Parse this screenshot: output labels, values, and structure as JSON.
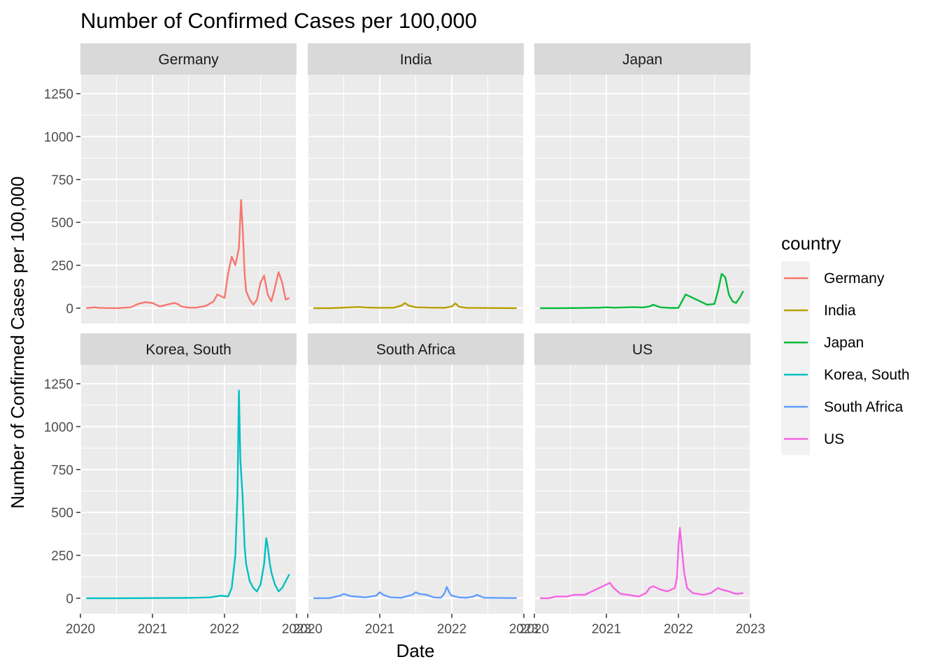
{
  "chart_data": {
    "type": "line",
    "title": "Number of Confirmed Cases per 100,000",
    "xlabel": "Date",
    "ylabel": "Number of Confirmed Cases per 100,000",
    "xlim": [
      2020.0,
      2023.0
    ],
    "ylim": [
      0,
      1250
    ],
    "x_ticks": [
      "2020",
      "2021",
      "2022",
      "2023"
    ],
    "x_tick_values": [
      2020,
      2021,
      2022,
      2023
    ],
    "y_ticks": [
      "0",
      "250",
      "500",
      "750",
      "1000",
      "1250"
    ],
    "y_tick_values": [
      0,
      250,
      500,
      750,
      1000,
      1250
    ],
    "grid": true,
    "facets": "3 columns x 2 rows",
    "legend": {
      "title": "country",
      "placement": "right",
      "entries": [
        "Germany",
        "India",
        "Japan",
        "Korea, South",
        "South Africa",
        "US"
      ]
    },
    "series": [
      {
        "name": "Germany",
        "color": "#F8766D",
        "x": [
          2020.08,
          2020.2,
          2020.25,
          2020.35,
          2020.5,
          2020.7,
          2020.8,
          2020.9,
          2021.0,
          2021.1,
          2021.15,
          2021.3,
          2021.35,
          2021.4,
          2021.5,
          2021.6,
          2021.7,
          2021.75,
          2021.85,
          2021.9,
          2022.0,
          2022.05,
          2022.1,
          2022.15,
          2022.2,
          2022.23,
          2022.25,
          2022.28,
          2022.3,
          2022.35,
          2022.4,
          2022.45,
          2022.5,
          2022.55,
          2022.6,
          2022.65,
          2022.7,
          2022.75,
          2022.8,
          2022.85,
          2022.9
        ],
        "y": [
          0,
          5,
          2,
          1,
          0,
          5,
          25,
          35,
          30,
          10,
          15,
          30,
          25,
          10,
          3,
          3,
          10,
          15,
          40,
          80,
          60,
          200,
          300,
          250,
          350,
          630,
          480,
          200,
          100,
          50,
          20,
          50,
          150,
          190,
          80,
          40,
          120,
          210,
          150,
          50,
          60
        ]
      },
      {
        "name": "India",
        "color": "#B79F00",
        "x": [
          2020.08,
          2020.3,
          2020.5,
          2020.7,
          2020.8,
          2021.0,
          2021.2,
          2021.3,
          2021.35,
          2021.4,
          2021.5,
          2021.7,
          2021.9,
          2022.0,
          2022.05,
          2022.1,
          2022.2,
          2022.5,
          2022.9
        ],
        "y": [
          0,
          0,
          3,
          7,
          4,
          2,
          3,
          15,
          30,
          15,
          5,
          3,
          2,
          10,
          28,
          8,
          2,
          1,
          0
        ]
      },
      {
        "name": "Japan",
        "color": "#00BA38",
        "x": [
          2020.08,
          2020.3,
          2020.6,
          2020.9,
          2021.0,
          2021.1,
          2021.3,
          2021.4,
          2021.5,
          2021.6,
          2021.65,
          2021.75,
          2021.9,
          2022.0,
          2022.05,
          2022.1,
          2022.2,
          2022.3,
          2022.4,
          2022.5,
          2022.55,
          2022.6,
          2022.65,
          2022.7,
          2022.75,
          2022.8,
          2022.85,
          2022.9
        ],
        "y": [
          0,
          0,
          1,
          3,
          5,
          3,
          5,
          6,
          4,
          10,
          20,
          5,
          1,
          2,
          40,
          80,
          60,
          40,
          20,
          25,
          100,
          200,
          180,
          80,
          40,
          30,
          60,
          100
        ]
      },
      {
        "name": "Korea, South",
        "color": "#00BFC4",
        "x": [
          2020.08,
          2020.5,
          2021.0,
          2021.5,
          2021.8,
          2021.95,
          2022.05,
          2022.1,
          2022.15,
          2022.18,
          2022.2,
          2022.22,
          2022.25,
          2022.28,
          2022.3,
          2022.35,
          2022.4,
          2022.45,
          2022.5,
          2022.55,
          2022.58,
          2022.6,
          2022.63,
          2022.65,
          2022.7,
          2022.75,
          2022.8,
          2022.85,
          2022.9
        ],
        "y": [
          0,
          0,
          1,
          2,
          5,
          15,
          10,
          60,
          250,
          600,
          1210,
          800,
          600,
          300,
          200,
          100,
          60,
          40,
          80,
          200,
          350,
          300,
          200,
          150,
          80,
          40,
          60,
          100,
          140
        ]
      },
      {
        "name": "South Africa",
        "color": "#619CFF",
        "x": [
          2020.08,
          2020.3,
          2020.45,
          2020.5,
          2020.6,
          2020.8,
          2020.95,
          2021.0,
          2021.05,
          2021.15,
          2021.3,
          2021.45,
          2021.5,
          2021.55,
          2021.65,
          2021.75,
          2021.85,
          2021.9,
          2021.93,
          2021.97,
          2022.0,
          2022.1,
          2022.2,
          2022.3,
          2022.35,
          2022.45,
          2022.6,
          2022.9
        ],
        "y": [
          0,
          1,
          15,
          25,
          12,
          5,
          15,
          35,
          20,
          5,
          3,
          20,
          35,
          25,
          20,
          5,
          3,
          30,
          65,
          30,
          15,
          5,
          3,
          10,
          20,
          3,
          2,
          1
        ]
      },
      {
        "name": "US",
        "color": "#F564E3",
        "x": [
          2020.08,
          2020.2,
          2020.3,
          2020.45,
          2020.55,
          2020.7,
          2020.8,
          2020.9,
          2021.0,
          2021.05,
          2021.1,
          2021.2,
          2021.3,
          2021.45,
          2021.55,
          2021.6,
          2021.65,
          2021.75,
          2021.85,
          2021.95,
          2021.98,
          2022.0,
          2022.02,
          2022.05,
          2022.08,
          2022.12,
          2022.2,
          2022.35,
          2022.45,
          2022.55,
          2022.6,
          2022.7,
          2022.8,
          2022.9
        ],
        "y": [
          0,
          0,
          10,
          10,
          20,
          20,
          40,
          60,
          80,
          90,
          60,
          25,
          20,
          10,
          30,
          60,
          70,
          50,
          40,
          60,
          120,
          300,
          410,
          280,
          150,
          60,
          30,
          20,
          30,
          60,
          50,
          40,
          25,
          30
        ]
      }
    ]
  }
}
